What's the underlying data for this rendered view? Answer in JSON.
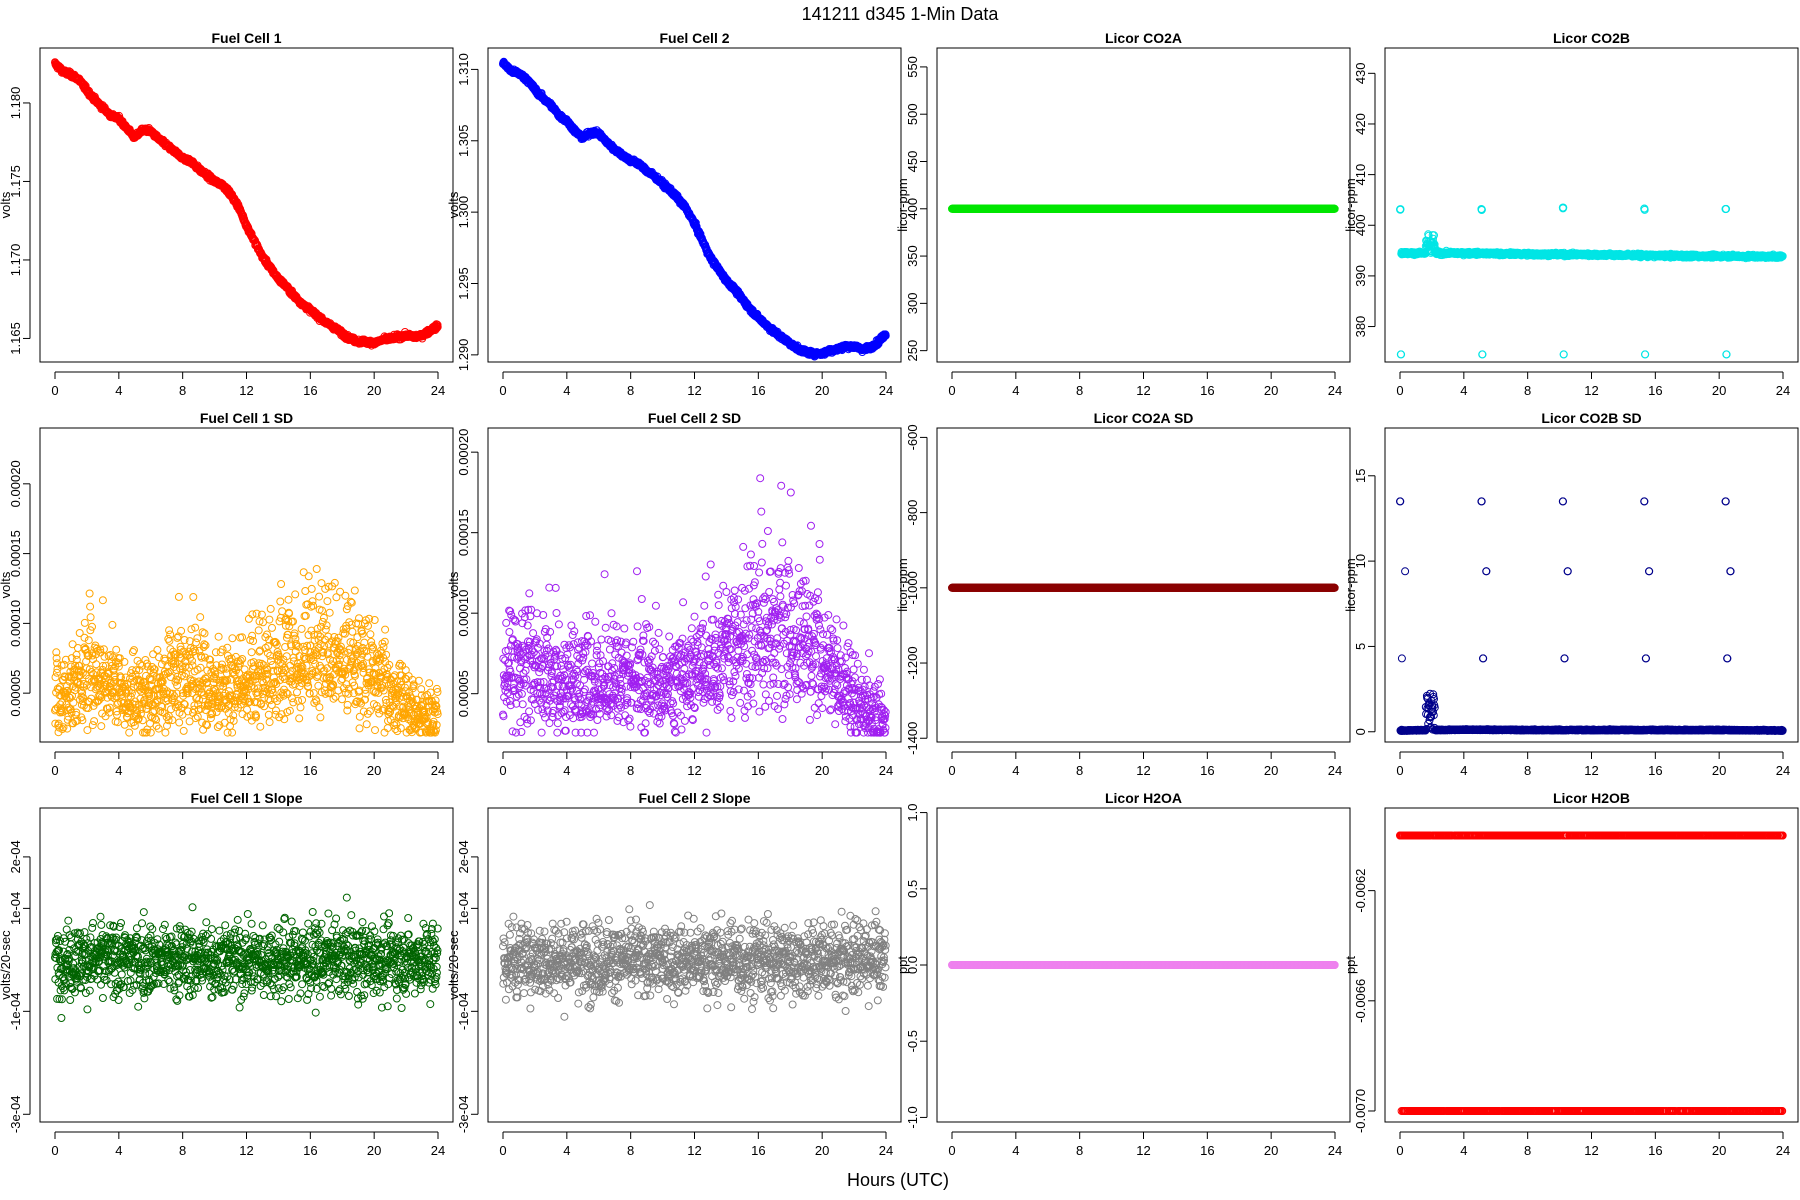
{
  "figure": {
    "title": "141211    d345    1-Min Data",
    "xlabel": "Hours (UTC)"
  },
  "chart_data": [
    {
      "type": "scatter",
      "title": "Fuel Cell 1",
      "ylabel": "volts",
      "color": "#ff0000",
      "xlim": [
        0,
        24
      ],
      "xticks": [
        0,
        4,
        8,
        12,
        16,
        20,
        24
      ],
      "ylim": [
        1.1635,
        1.1835
      ],
      "yticks": [
        1.165,
        1.17,
        1.175,
        1.18
      ],
      "ytick_labels": [
        "1.165",
        "1.170",
        "1.175",
        "1.180"
      ],
      "series": [
        {
          "name": "Fuel Cell 1",
          "x": [
            0,
            0.5,
            1,
            1.5,
            2,
            2.5,
            3,
            3.5,
            4,
            4.5,
            5,
            5.5,
            6,
            6.5,
            7,
            7.5,
            8,
            8.5,
            9,
            9.5,
            10,
            10.5,
            11,
            11.5,
            12,
            12.5,
            13,
            13.5,
            14,
            14.5,
            15,
            15.5,
            16,
            16.5,
            17,
            17.5,
            18,
            18.5,
            19,
            19.5,
            20,
            20.5,
            21,
            21.5,
            22,
            22.5,
            23,
            23.5,
            24
          ],
          "y": [
            1.1825,
            1.182,
            1.1818,
            1.1815,
            1.1808,
            1.1802,
            1.1797,
            1.1792,
            1.179,
            1.1784,
            1.1778,
            1.1783,
            1.1782,
            1.1777,
            1.1773,
            1.1769,
            1.1765,
            1.1763,
            1.1758,
            1.1754,
            1.175,
            1.1748,
            1.1742,
            1.1734,
            1.1722,
            1.1712,
            1.1702,
            1.1695,
            1.1688,
            1.1683,
            1.1677,
            1.1672,
            1.1668,
            1.1664,
            1.166,
            1.1657,
            1.1653,
            1.165,
            1.1648,
            1.1648,
            1.1647,
            1.1649,
            1.165,
            1.1651,
            1.1652,
            1.1651,
            1.1652,
            1.1655,
            1.1658
          ]
        }
      ]
    },
    {
      "type": "scatter",
      "title": "Fuel Cell 2",
      "ylabel": "volts",
      "color": "#0000ff",
      "xlim": [
        0,
        24
      ],
      "xticks": [
        0,
        4,
        8,
        12,
        16,
        20,
        24
      ],
      "ylim": [
        1.2895,
        1.3115
      ],
      "yticks": [
        1.29,
        1.295,
        1.3,
        1.305,
        1.31
      ],
      "ytick_labels": [
        "1.290",
        "1.295",
        "1.300",
        "1.305",
        "1.310"
      ],
      "series": [
        {
          "name": "Fuel Cell 2",
          "x": [
            0,
            0.5,
            1,
            1.5,
            2,
            2.5,
            3,
            3.5,
            4,
            4.5,
            5,
            5.5,
            6,
            6.5,
            7,
            7.5,
            8,
            8.5,
            9,
            9.5,
            10,
            10.5,
            11,
            11.5,
            12,
            12.5,
            13,
            13.5,
            14,
            14.5,
            15,
            15.5,
            16,
            16.5,
            17,
            17.5,
            18,
            18.5,
            19,
            19.5,
            20,
            20.5,
            21,
            21.5,
            22,
            22.5,
            23,
            23.5,
            24
          ],
          "y": [
            1.3105,
            1.3099,
            1.3097,
            1.3093,
            1.3086,
            1.308,
            1.3075,
            1.3068,
            1.3064,
            1.3057,
            1.3052,
            1.3056,
            1.3055,
            1.3049,
            1.3044,
            1.304,
            1.3036,
            1.3034,
            1.3029,
            1.3025,
            1.302,
            1.3015,
            1.3009,
            1.3002,
            1.2992,
            1.298,
            1.2968,
            1.296,
            1.2952,
            1.2946,
            1.2939,
            1.2932,
            1.2926,
            1.2921,
            1.2916,
            1.2912,
            1.2908,
            1.2904,
            1.2902,
            1.2901,
            1.2901,
            1.2903,
            1.2904,
            1.2906,
            1.2906,
            1.2904,
            1.2905,
            1.2909,
            1.2915
          ]
        }
      ]
    },
    {
      "type": "scatter",
      "title": "Licor CO2A",
      "ylabel": "licor-ppm",
      "color": "#00e600",
      "xlim": [
        0,
        24
      ],
      "xticks": [
        0,
        4,
        8,
        12,
        16,
        20,
        24
      ],
      "ylim": [
        238,
        570
      ],
      "yticks": [
        250,
        300,
        350,
        400,
        450,
        500,
        550
      ],
      "ytick_labels": [
        "250",
        "300",
        "350",
        "400",
        "450",
        "500",
        "550"
      ],
      "series": [
        {
          "name": "Licor CO2A",
          "x": [
            0,
            24
          ],
          "y": [
            400,
            400
          ]
        }
      ]
    },
    {
      "type": "scatter",
      "title": "Licor CO2B",
      "ylabel": "licor-ppm",
      "color": "#00e5e5",
      "xlim": [
        0,
        24
      ],
      "xticks": [
        0,
        4,
        8,
        12,
        16,
        20,
        24
      ],
      "ylim": [
        373,
        435
      ],
      "yticks": [
        380,
        390,
        400,
        410,
        420,
        430
      ],
      "ytick_labels": [
        "380",
        "390",
        "400",
        "410",
        "420",
        "430"
      ],
      "series": [
        {
          "name": "Licor CO2B",
          "x": [
            0,
            4,
            8,
            12,
            16,
            20,
            24
          ],
          "y": [
            394.5,
            394.5,
            394.3,
            394.2,
            394,
            393.9,
            393.8
          ]
        }
      ]
    },
    {
      "type": "scatter",
      "title": "Fuel Cell 1 SD",
      "ylabel": "volts",
      "color": "#ffa500",
      "xlim": [
        0,
        24
      ],
      "xticks": [
        0,
        4,
        8,
        12,
        16,
        20,
        24
      ],
      "ylim": [
        1.5e-05,
        0.00024
      ],
      "yticks": [
        5e-05,
        0.0001,
        0.00015,
        0.0002
      ],
      "ytick_labels": [
        "0.00005",
        "0.00010",
        "0.00015",
        "0.00020"
      ],
      "series": [
        {
          "name": "Fuel Cell 1 SD",
          "x": [
            0,
            2,
            4,
            6,
            8,
            10,
            12,
            14,
            16,
            18,
            20,
            22,
            24
          ],
          "y": [
            6e-05,
            8e-05,
            6e-05,
            6e-05,
            8e-05,
            6e-05,
            7e-05,
            9e-05,
            0.0001,
            9e-05,
            8e-05,
            5e-05,
            4e-05
          ]
        }
      ]
    },
    {
      "type": "scatter",
      "title": "Fuel Cell 2 SD",
      "ylabel": "volts",
      "color": "#a020f0",
      "xlim": [
        0,
        24
      ],
      "xticks": [
        0,
        4,
        8,
        12,
        16,
        20,
        24
      ],
      "ylim": [
        2e-05,
        0.000215
      ],
      "yticks": [
        5e-05,
        0.0001,
        0.00015,
        0.0002
      ],
      "ytick_labels": [
        "0.00005",
        "0.00010",
        "0.00015",
        "0.00020"
      ],
      "series": [
        {
          "name": "Fuel Cell 2 SD",
          "x": [
            0,
            2,
            4,
            6,
            8,
            10,
            12,
            14,
            16,
            18,
            20,
            22,
            24
          ],
          "y": [
            8e-05,
            8e-05,
            7e-05,
            7e-05,
            8e-05,
            7e-05,
            8e-05,
            0.0001,
            0.00011,
            0.00011,
            9e-05,
            6e-05,
            4e-05
          ]
        }
      ]
    },
    {
      "type": "scatter",
      "title": "Licor CO2A SD",
      "ylabel": "licor-ppm",
      "color": "#8b0000",
      "xlim": [
        0,
        24
      ],
      "xticks": [
        0,
        4,
        8,
        12,
        16,
        20,
        24
      ],
      "ylim": [
        -1410,
        -575
      ],
      "yticks": [
        -1400,
        -1200,
        -1000,
        -800,
        -600
      ],
      "ytick_labels": [
        "-1400",
        "-1200",
        "-1000",
        "-800",
        "-600"
      ],
      "series": [
        {
          "name": "Licor CO2A SD",
          "x": [
            0,
            24
          ],
          "y": [
            -1000,
            -1000
          ]
        }
      ]
    },
    {
      "type": "scatter",
      "title": "Licor CO2B SD",
      "ylabel": "licor-ppm",
      "color": "#00008b",
      "xlim": [
        0,
        24
      ],
      "xticks": [
        0,
        4,
        8,
        12,
        16,
        20,
        24
      ],
      "ylim": [
        -0.6,
        17.8
      ],
      "yticks": [
        0,
        5,
        10,
        15
      ],
      "ytick_labels": [
        "0",
        "5",
        "10",
        "15"
      ],
      "series": [
        {
          "name": "Licor CO2B SD",
          "x": [
            0,
            4,
            8,
            12,
            16,
            20,
            24
          ],
          "y": [
            0.05,
            0.1,
            0.08,
            0.08,
            0.08,
            0.08,
            0.05
          ]
        }
      ]
    },
    {
      "type": "scatter",
      "title": "Fuel Cell 1 Slope",
      "ylabel": "volts/20-sec",
      "color": "#006400",
      "xlim": [
        0,
        24
      ],
      "xticks": [
        0,
        4,
        8,
        12,
        16,
        20,
        24
      ],
      "ylim": [
        -0.000315,
        0.000295
      ],
      "yticks": [
        -0.0003,
        -0.0001,
        0.0001,
        0.0002
      ],
      "ytick_labels": [
        "-3e-04",
        "-1e-04",
        "1e-04",
        "2e-04"
      ],
      "series": [
        {
          "name": "Fuel Cell 1 Slope",
          "x": [
            0,
            4,
            8,
            12,
            16,
            20,
            24
          ],
          "y": [
            0,
            0,
            0,
            0,
            0,
            0,
            0
          ]
        }
      ]
    },
    {
      "type": "scatter",
      "title": "Fuel Cell 2 Slope",
      "ylabel": "volts/20-sec",
      "color": "#808080",
      "xlim": [
        0,
        24
      ],
      "xticks": [
        0,
        4,
        8,
        12,
        16,
        20,
        24
      ],
      "ylim": [
        -0.000315,
        0.000295
      ],
      "yticks": [
        -0.0003,
        -0.0001,
        0.0001,
        0.0002
      ],
      "ytick_labels": [
        "-3e-04",
        "-1e-04",
        "1e-04",
        "2e-04"
      ],
      "series": [
        {
          "name": "Fuel Cell 2 Slope",
          "x": [
            0,
            4,
            8,
            12,
            16,
            20,
            24
          ],
          "y": [
            0,
            0,
            0,
            0,
            0,
            0,
            0
          ]
        }
      ]
    },
    {
      "type": "scatter",
      "title": "Licor H2OA",
      "ylabel": "ppt",
      "color": "#ee82ee",
      "xlim": [
        0,
        24
      ],
      "xticks": [
        0,
        4,
        8,
        12,
        16,
        20,
        24
      ],
      "ylim": [
        -1.03,
        1.03
      ],
      "yticks": [
        -1,
        -0.5,
        0,
        0.5,
        1
      ],
      "ytick_labels": [
        "-1.0",
        "-0.5",
        "0.0",
        "0.5",
        "1.0"
      ],
      "series": [
        {
          "name": "Licor H2OA",
          "x": [
            0,
            24
          ],
          "y": [
            0,
            0
          ]
        }
      ]
    },
    {
      "type": "scatter",
      "title": "Licor H2OB",
      "ylabel": "ppt",
      "color": "#ff0000",
      "xlim": [
        0,
        24
      ],
      "xticks": [
        0,
        4,
        8,
        12,
        16,
        20,
        24
      ],
      "ylim": [
        -0.00704,
        -0.0059
      ],
      "yticks": [
        -0.007,
        -0.0066,
        -0.0062
      ],
      "ytick_labels": [
        "-0.0070",
        "-0.0066",
        "-0.0062"
      ],
      "series": [
        {
          "name": "Licor H2OB",
          "x": [
            0,
            24
          ],
          "y": [
            -0.006,
            -0.007
          ]
        }
      ]
    }
  ]
}
